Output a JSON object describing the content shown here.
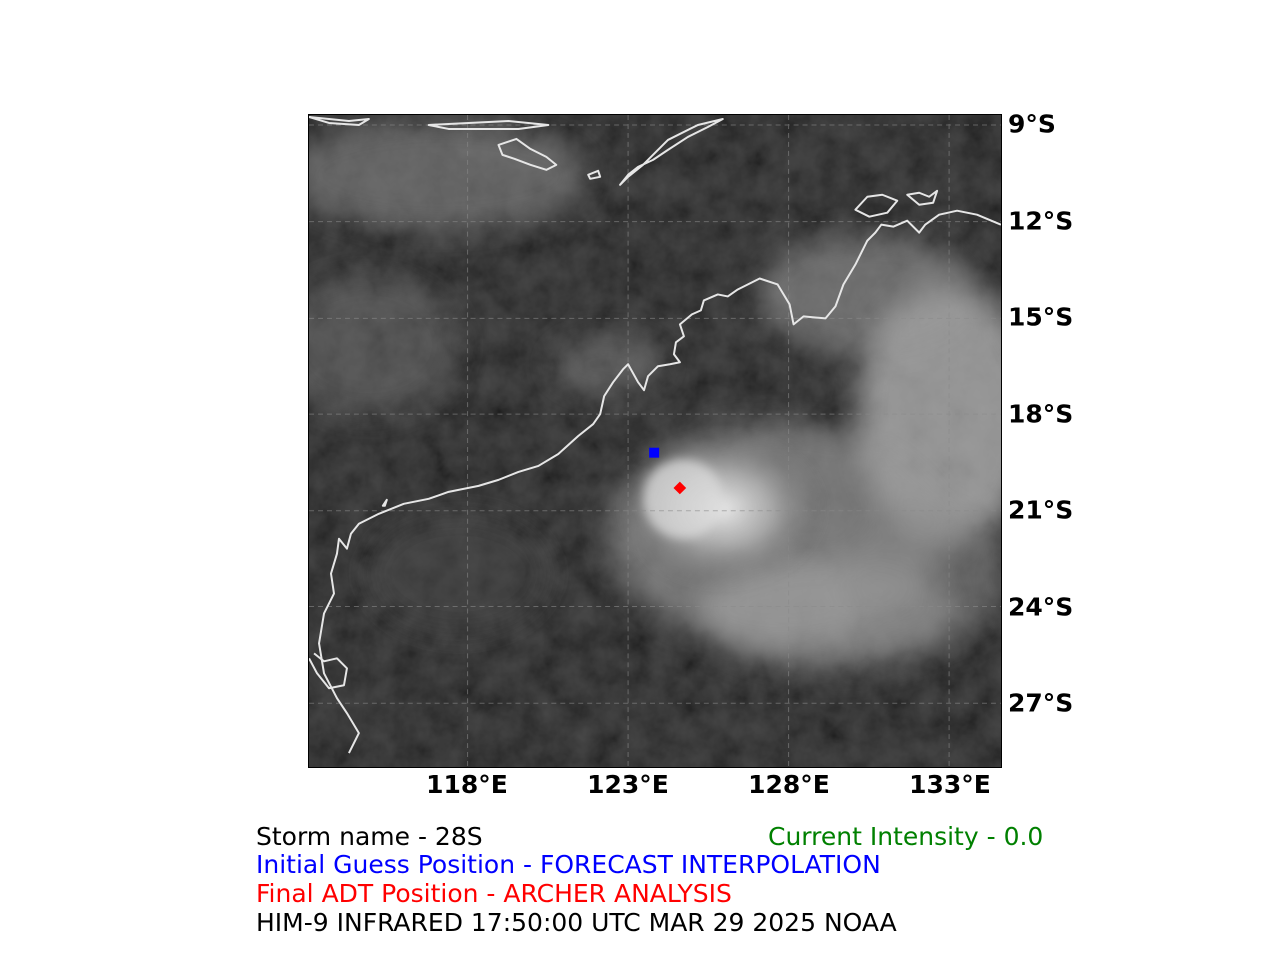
{
  "map": {
    "latitude_labels": [
      "9°S",
      "12°S",
      "15°S",
      "18°S",
      "21°S",
      "24°S",
      "27°S"
    ],
    "longitude_labels": [
      "118°E",
      "123°E",
      "128°E",
      "133°E"
    ],
    "markers": [
      {
        "name": "initial-guess-marker",
        "shape": "square",
        "color": "#0000ff",
        "lon": 123.8,
        "lat": -19.2
      },
      {
        "name": "final-adt-marker",
        "shape": "diamond",
        "color": "#ff0000",
        "lon": 124.6,
        "lat": -20.3
      }
    ],
    "coastline_color": "#e6e6e6",
    "gridline_style": "dashed"
  },
  "caption": {
    "storm_name": "Storm name - 28S",
    "current_intensity": "Current Intensity -  0.0",
    "initial_guess": "Initial Guess Position - FORECAST INTERPOLATION",
    "final_position": "Final ADT Position -  ARCHER  ANALYSIS",
    "image_source": "HIM-9 INFRARED 17:50:00 UTC MAR 29 2025 NOAA"
  },
  "colors": {
    "storm_name": "#000000",
    "current_intensity": "#008000",
    "initial_guess": "#0000ff",
    "final_position": "#ff0000",
    "image_source": "#000000"
  }
}
